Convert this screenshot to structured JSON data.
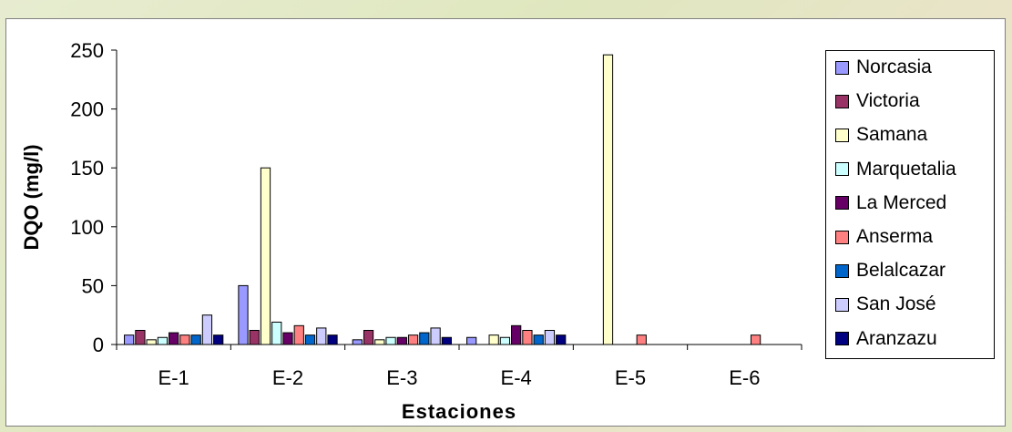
{
  "chart_data": {
    "type": "bar",
    "title": "",
    "xlabel": "Estaciones",
    "ylabel": "DQO (mg/l)",
    "ylim": [
      0,
      250
    ],
    "yticks": [
      0,
      50,
      100,
      150,
      200,
      250
    ],
    "categories": [
      "E-1",
      "E-2",
      "E-3",
      "E-4",
      "E-5",
      "E-6"
    ],
    "legend_position": "right",
    "series": [
      {
        "name": "Norcasia",
        "color": "#9999ff",
        "values": [
          8,
          50,
          4,
          6,
          0,
          0
        ]
      },
      {
        "name": "Victoria",
        "color": "#993366",
        "values": [
          12,
          12,
          12,
          0,
          0,
          0
        ]
      },
      {
        "name": "Samana",
        "color": "#ffffcc",
        "values": [
          4,
          150,
          4,
          8,
          246,
          0
        ]
      },
      {
        "name": "Marquetalia",
        "color": "#ccffff",
        "values": [
          6,
          19,
          6,
          6,
          0,
          0
        ]
      },
      {
        "name": "La Merced",
        "color": "#660066",
        "values": [
          10,
          10,
          6,
          16,
          0,
          0
        ]
      },
      {
        "name": "Anserma",
        "color": "#ff8080",
        "values": [
          8,
          16,
          8,
          12,
          8,
          8
        ]
      },
      {
        "name": "Belalcazar",
        "color": "#0066cc",
        "values": [
          8,
          8,
          10,
          8,
          0,
          0
        ]
      },
      {
        "name": "San José",
        "color": "#ccccff",
        "values": [
          25,
          14,
          14,
          12,
          0,
          0
        ]
      },
      {
        "name": "Aranzazu",
        "color": "#000080",
        "values": [
          8,
          8,
          6,
          8,
          0,
          0
        ]
      }
    ]
  }
}
